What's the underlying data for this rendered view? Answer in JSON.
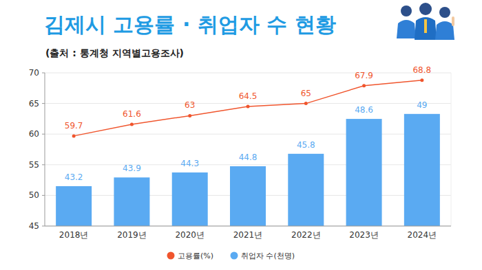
{
  "chart_data": {
    "type": "bar",
    "title": "김제시 고용률 · 취업자 수 현황",
    "subtitle": "(출처 : 통계청 지역별고용조사)",
    "categories": [
      "2018년",
      "2019년",
      "2020년",
      "2021년",
      "2022년",
      "2023년",
      "2024년"
    ],
    "series": [
      {
        "name": "고용률(%)",
        "type": "line",
        "color": "#f0552d",
        "marker": "circle",
        "values": [
          59.7,
          61.6,
          63,
          64.5,
          65,
          67.9,
          68.8
        ]
      },
      {
        "name": "취업자 수(천명)",
        "type": "bar",
        "color": "#5aaaf2",
        "axis": "y2",
        "values": [
          43.2,
          43.9,
          44.3,
          44.8,
          45.8,
          48.6,
          49
        ]
      }
    ],
    "ylim": [
      45,
      70
    ],
    "yticks": [
      45,
      50,
      55,
      60,
      65,
      70
    ],
    "y2lim": [
      40,
      52.3
    ],
    "grid": true,
    "legend": "bottom",
    "data_labels": true
  }
}
